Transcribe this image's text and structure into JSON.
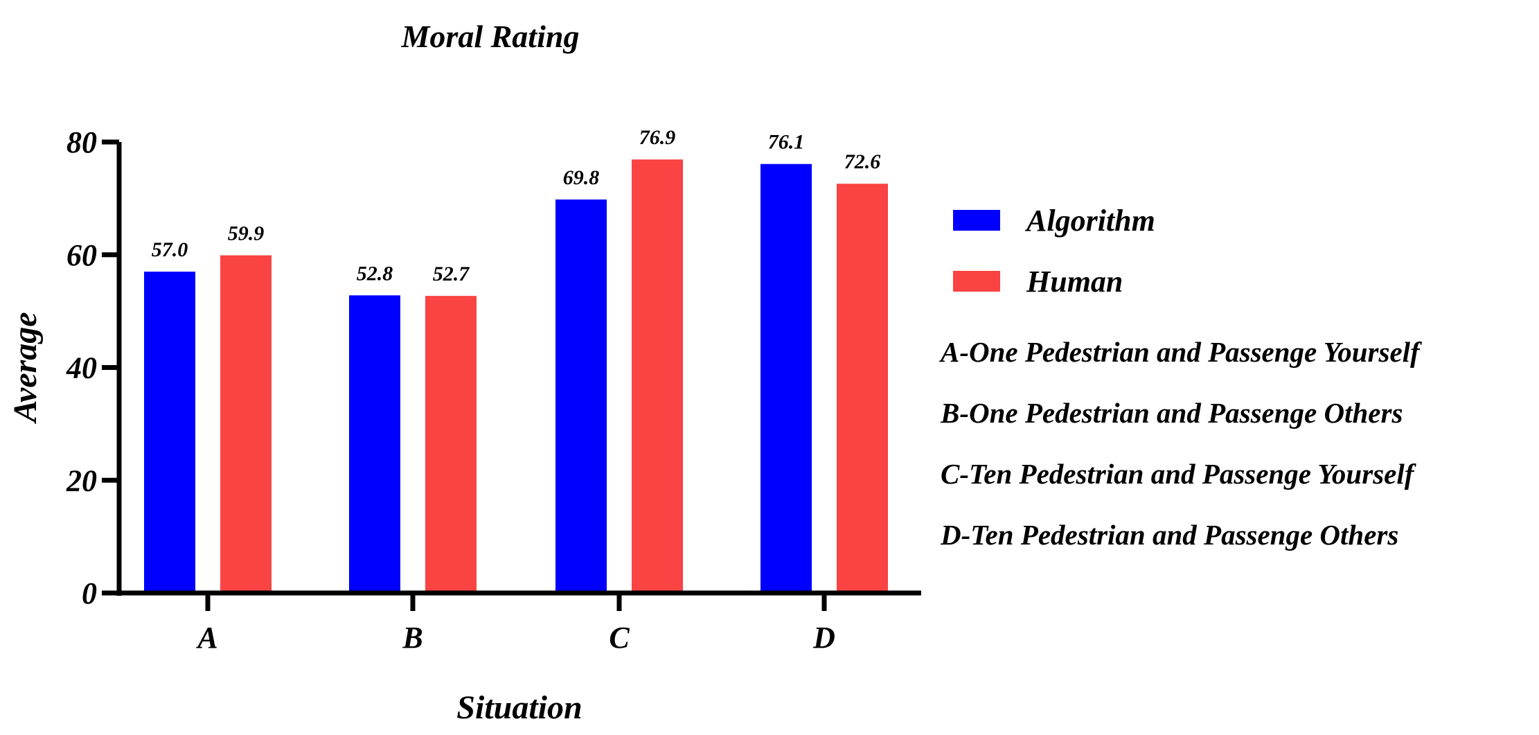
{
  "chart_data": {
    "type": "bar",
    "title": "Moral Rating",
    "xlabel": "Situation",
    "ylabel": "Average",
    "ylim": [
      0,
      80
    ],
    "yticks": [
      0,
      20,
      40,
      60,
      80
    ],
    "categories": [
      "A",
      "B",
      "C",
      "D"
    ],
    "series": [
      {
        "name": "Algorithm",
        "color": "#0000ff",
        "values": [
          57.0,
          52.8,
          69.8,
          76.1
        ],
        "labels": [
          "57.0",
          "52.8",
          "69.8",
          "76.1"
        ]
      },
      {
        "name": "Human",
        "color": "#fa4343",
        "values": [
          59.9,
          52.7,
          76.9,
          72.6
        ],
        "labels": [
          "59.9",
          "52.7",
          "76.9",
          "72.6"
        ]
      }
    ],
    "grid": false,
    "legend_position": "right",
    "notes": [
      "A-One Pedestrian and Passenge Yourself",
      "B-One Pedestrian and Passenge Others",
      "C-Ten Pedestrian and Passenge Yourself",
      "D-Ten Pedestrian and Passenge Others"
    ]
  }
}
